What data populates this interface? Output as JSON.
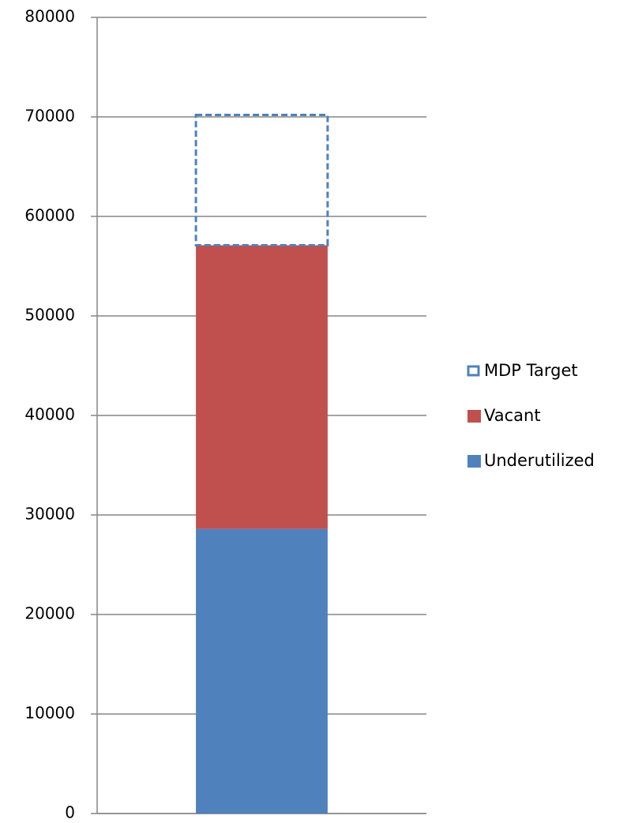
{
  "chart_data": {
    "type": "stacked-bar",
    "categories": [
      null
    ],
    "series": [
      {
        "name": "Underutilized",
        "color": "#4f81bd",
        "values": [
          28600
        ]
      },
      {
        "name": "Vacant",
        "color": "#c0504d",
        "values": [
          28500
        ]
      },
      {
        "name": "MDP Target",
        "color": "#4f81bd",
        "dashed": true,
        "values": [
          13100
        ]
      }
    ],
    "ylim": [
      0,
      80000
    ],
    "yticks": [
      0,
      10000,
      20000,
      30000,
      40000,
      50000,
      60000,
      70000,
      80000
    ],
    "grid": true,
    "legend": "right"
  }
}
